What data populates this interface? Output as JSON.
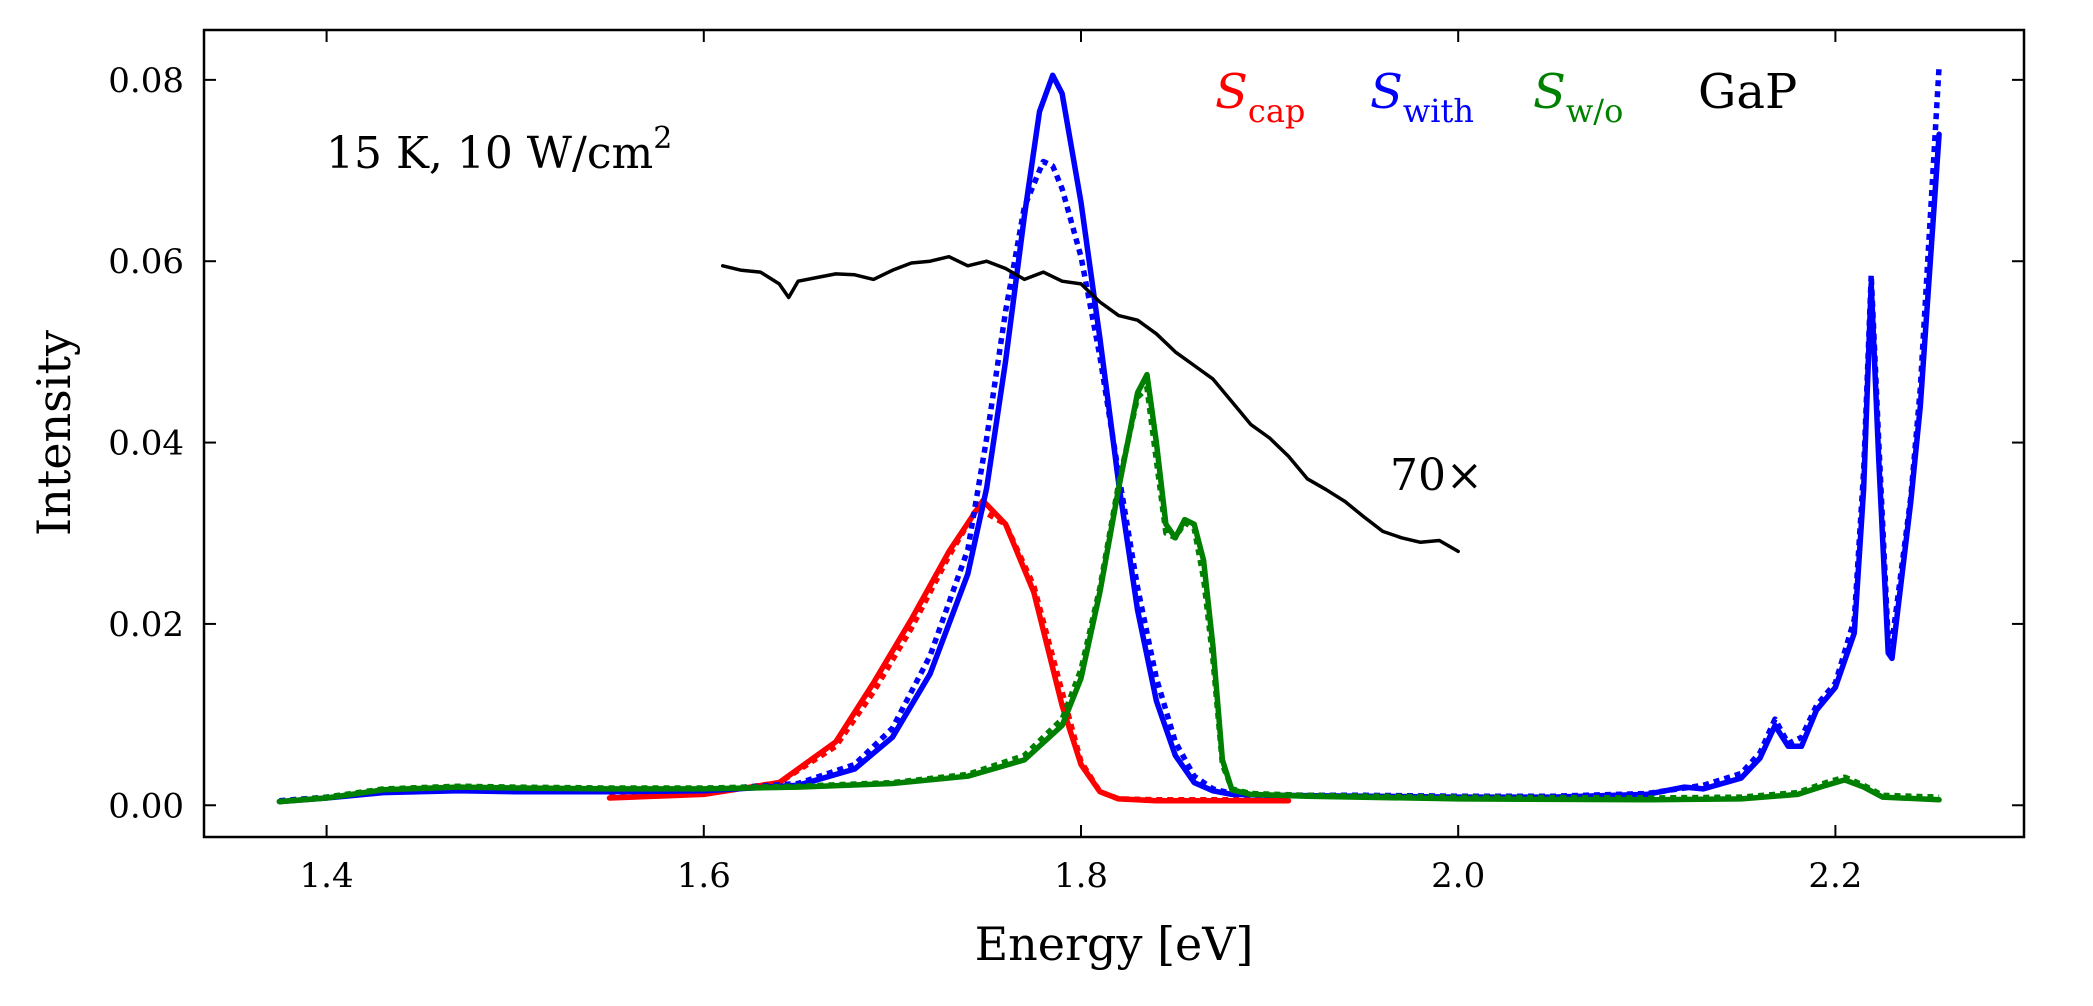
{
  "chart_data": {
    "type": "line",
    "xlabel": "Energy [eV]",
    "ylabel": "Intensity",
    "xlim": [
      1.335,
      2.3
    ],
    "ylim": [
      -0.0035,
      0.0855
    ],
    "xticks": [
      1.4,
      1.6,
      1.8,
      2.0,
      2.2
    ],
    "xtick_labels": [
      "1.4",
      "1.6",
      "1.8",
      "2.0",
      "2.2"
    ],
    "yticks": [
      0.0,
      0.02,
      0.04,
      0.06,
      0.08
    ],
    "ytick_labels": [
      "0.00",
      "0.02",
      "0.04",
      "0.06",
      "0.08"
    ],
    "grid": false,
    "annotations": {
      "conditions_prefix": "15 K, 10 W/cm",
      "conditions_sup": "2",
      "scale": "70×"
    },
    "legend": [
      {
        "main": "S",
        "sub": "cap",
        "color": "#ff0000"
      },
      {
        "main": "S",
        "sub": "with",
        "color": "#0000ff"
      },
      {
        "main": "S",
        "sub": "w/o",
        "color": "#008000"
      },
      {
        "main": "GaP",
        "sub": "",
        "color": "#000000"
      }
    ],
    "series": [
      {
        "name": "Scap",
        "color": "#ff0000",
        "style": "dotted",
        "x": [
          1.55,
          1.6,
          1.64,
          1.67,
          1.69,
          1.71,
          1.73,
          1.745,
          1.76,
          1.775,
          1.79,
          1.8,
          1.81,
          1.82,
          1.84,
          1.9
        ],
        "y": [
          0.0009,
          0.0013,
          0.0025,
          0.0065,
          0.0125,
          0.0195,
          0.0275,
          0.0328,
          0.031,
          0.0242,
          0.0125,
          0.0048,
          0.0015,
          0.0007,
          0.0006,
          0.0006
        ]
      },
      {
        "name": "Scap",
        "color": "#ff0000",
        "style": "solid",
        "x": [
          1.55,
          1.6,
          1.64,
          1.67,
          1.69,
          1.71,
          1.73,
          1.748,
          1.76,
          1.775,
          1.79,
          1.8,
          1.81,
          1.82,
          1.84,
          1.91
        ],
        "y": [
          0.0008,
          0.0012,
          0.0025,
          0.007,
          0.0135,
          0.0205,
          0.028,
          0.0336,
          0.031,
          0.0235,
          0.011,
          0.0045,
          0.0015,
          0.0007,
          0.0005,
          0.0005
        ]
      },
      {
        "name": "Swith",
        "color": "#0000ff",
        "style": "dotted",
        "x": [
          1.375,
          1.4,
          1.43,
          1.47,
          1.5,
          1.55,
          1.6,
          1.65,
          1.68,
          1.7,
          1.72,
          1.74,
          1.75,
          1.76,
          1.77,
          1.78,
          1.785,
          1.79,
          1.8,
          1.81,
          1.82,
          1.83,
          1.84,
          1.85,
          1.86,
          1.87,
          1.88,
          1.9,
          1.95,
          2.0,
          2.05,
          2.1,
          2.13,
          2.15,
          2.16,
          2.168,
          2.175,
          2.182,
          2.19,
          2.2,
          2.21,
          2.215,
          2.219,
          2.223,
          2.228,
          2.23,
          2.24,
          2.245,
          2.255
        ],
        "y": [
          0.0005,
          0.0009,
          0.0016,
          0.0017,
          0.0016,
          0.0016,
          0.0017,
          0.0024,
          0.0045,
          0.0085,
          0.0165,
          0.0282,
          0.0405,
          0.0545,
          0.066,
          0.071,
          0.0705,
          0.068,
          0.0605,
          0.0495,
          0.0365,
          0.024,
          0.014,
          0.007,
          0.0032,
          0.0018,
          0.0013,
          0.0011,
          0.0011,
          0.001,
          0.001,
          0.0013,
          0.0022,
          0.0035,
          0.0058,
          0.0095,
          0.0068,
          0.0075,
          0.011,
          0.0135,
          0.0205,
          0.037,
          0.0585,
          0.04,
          0.0182,
          0.018,
          0.034,
          0.046,
          0.0815
        ]
      },
      {
        "name": "Swith",
        "color": "#0000ff",
        "style": "solid",
        "x": [
          1.375,
          1.4,
          1.43,
          1.47,
          1.5,
          1.55,
          1.6,
          1.65,
          1.68,
          1.7,
          1.72,
          1.74,
          1.75,
          1.76,
          1.77,
          1.778,
          1.785,
          1.79,
          1.8,
          1.81,
          1.82,
          1.83,
          1.84,
          1.85,
          1.86,
          1.87,
          1.88,
          1.9,
          1.95,
          2.0,
          2.05,
          2.1,
          2.12,
          2.13,
          2.15,
          2.16,
          2.168,
          2.175,
          2.182,
          2.19,
          2.2,
          2.21,
          2.215,
          2.219,
          2.223,
          2.228,
          2.23,
          2.24,
          2.245,
          2.255
        ],
        "y": [
          0.0004,
          0.0008,
          0.0014,
          0.0016,
          0.0015,
          0.0015,
          0.0016,
          0.0022,
          0.004,
          0.0075,
          0.0145,
          0.0255,
          0.035,
          0.049,
          0.065,
          0.0765,
          0.0805,
          0.0785,
          0.0665,
          0.0515,
          0.0355,
          0.0215,
          0.0115,
          0.0055,
          0.0025,
          0.0016,
          0.0012,
          0.0011,
          0.001,
          0.0009,
          0.0009,
          0.0012,
          0.002,
          0.0018,
          0.003,
          0.0052,
          0.0088,
          0.0065,
          0.0065,
          0.0105,
          0.013,
          0.019,
          0.035,
          0.0575,
          0.038,
          0.0168,
          0.0162,
          0.0335,
          0.044,
          0.074
        ]
      },
      {
        "name": "Sw/o",
        "color": "#008000",
        "style": "dotted",
        "x": [
          1.375,
          1.4,
          1.43,
          1.47,
          1.5,
          1.55,
          1.6,
          1.65,
          1.7,
          1.74,
          1.77,
          1.79,
          1.8,
          1.81,
          1.82,
          1.83,
          1.835,
          1.84,
          1.845,
          1.85,
          1.855,
          1.86,
          1.865,
          1.87,
          1.875,
          1.88,
          1.89,
          1.92,
          2.0,
          2.1,
          2.15,
          2.18,
          2.195,
          2.205,
          2.215,
          2.225,
          2.255
        ],
        "y": [
          0.0004,
          0.0009,
          0.0018,
          0.0021,
          0.002,
          0.0019,
          0.0019,
          0.0021,
          0.0025,
          0.0034,
          0.0055,
          0.0095,
          0.015,
          0.024,
          0.0355,
          0.045,
          0.046,
          0.038,
          0.03,
          0.0295,
          0.0312,
          0.0305,
          0.025,
          0.016,
          0.0045,
          0.0018,
          0.0013,
          0.0011,
          0.0009,
          0.0008,
          0.0009,
          0.0014,
          0.0025,
          0.0031,
          0.0022,
          0.0011,
          0.0009
        ]
      },
      {
        "name": "Sw/o",
        "color": "#008000",
        "style": "solid",
        "x": [
          1.375,
          1.4,
          1.43,
          1.47,
          1.5,
          1.55,
          1.6,
          1.65,
          1.7,
          1.74,
          1.77,
          1.79,
          1.8,
          1.81,
          1.82,
          1.83,
          1.835,
          1.84,
          1.845,
          1.85,
          1.855,
          1.86,
          1.865,
          1.87,
          1.875,
          1.88,
          1.89,
          1.92,
          2.0,
          2.1,
          2.15,
          2.18,
          2.195,
          2.205,
          2.215,
          2.225,
          2.255
        ],
        "y": [
          0.0004,
          0.0008,
          0.0017,
          0.002,
          0.0019,
          0.0018,
          0.0018,
          0.002,
          0.0024,
          0.0032,
          0.005,
          0.0088,
          0.014,
          0.0235,
          0.035,
          0.0455,
          0.0475,
          0.04,
          0.031,
          0.0295,
          0.0315,
          0.031,
          0.027,
          0.0175,
          0.005,
          0.0017,
          0.0012,
          0.001,
          0.0007,
          0.0006,
          0.0007,
          0.0012,
          0.0022,
          0.0028,
          0.002,
          0.0009,
          0.0006
        ]
      },
      {
        "name": "GaP",
        "color": "#000000",
        "style": "solid",
        "scale_factor": "70×",
        "x": [
          1.61,
          1.62,
          1.63,
          1.64,
          1.645,
          1.65,
          1.66,
          1.67,
          1.68,
          1.69,
          1.7,
          1.71,
          1.72,
          1.73,
          1.74,
          1.75,
          1.76,
          1.77,
          1.78,
          1.79,
          1.8,
          1.81,
          1.82,
          1.83,
          1.84,
          1.85,
          1.86,
          1.87,
          1.88,
          1.89,
          1.9,
          1.91,
          1.92,
          1.93,
          1.94,
          1.95,
          1.96,
          1.97,
          1.98,
          1.99,
          2.0
        ],
        "y": [
          0.0595,
          0.059,
          0.0588,
          0.0575,
          0.056,
          0.0578,
          0.0582,
          0.0586,
          0.0585,
          0.058,
          0.059,
          0.0598,
          0.06,
          0.0605,
          0.0595,
          0.06,
          0.0592,
          0.058,
          0.0588,
          0.0578,
          0.0575,
          0.0555,
          0.054,
          0.0535,
          0.052,
          0.05,
          0.0485,
          0.047,
          0.0445,
          0.042,
          0.0405,
          0.0385,
          0.036,
          0.0348,
          0.0335,
          0.0318,
          0.0302,
          0.0295,
          0.029,
          0.0292,
          0.028
        ]
      }
    ]
  }
}
